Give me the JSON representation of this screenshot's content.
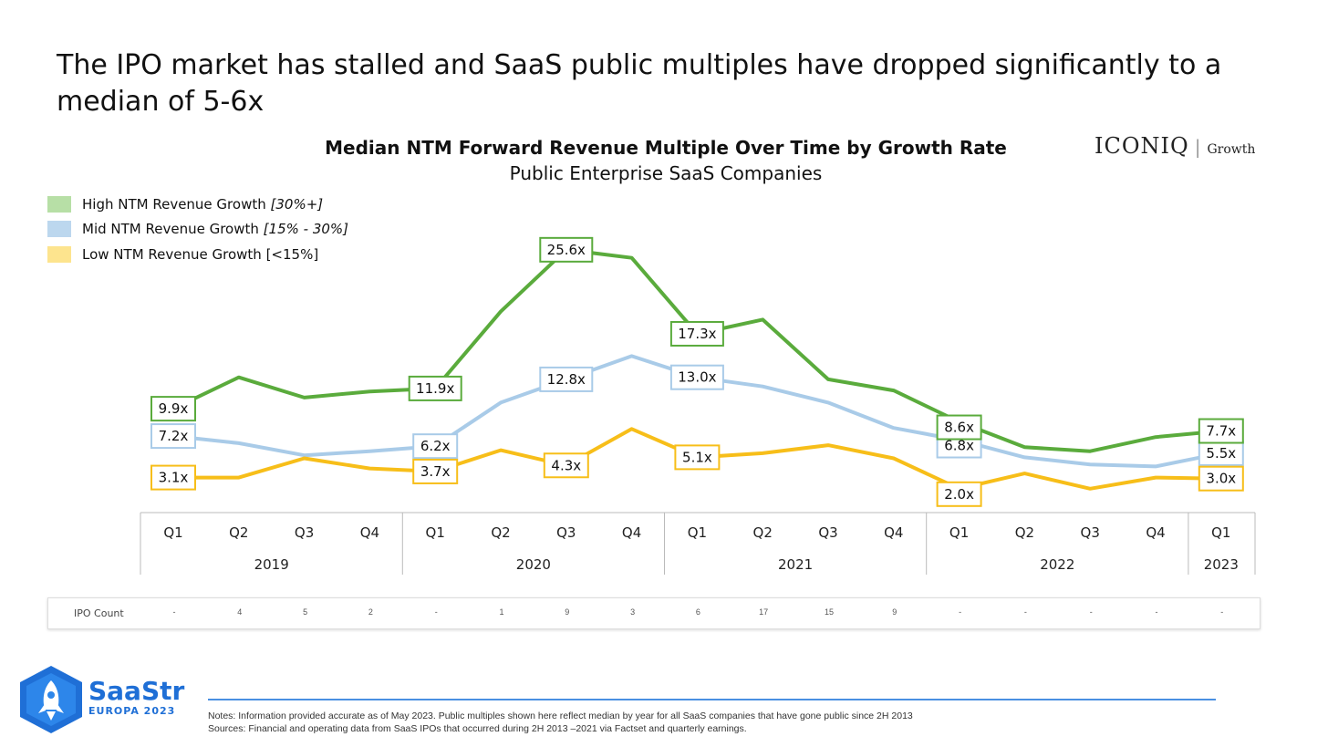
{
  "headline": "The IPO market has stalled and SaaS public multiples have dropped significantly to a median of 5-6x",
  "brand": {
    "name": "ICONIQ",
    "sub": "Growth"
  },
  "chart_data": {
    "type": "line",
    "title": "Median NTM Forward Revenue Multiple Over Time by Growth Rate",
    "subtitle": "Public Enterprise SaaS Companies",
    "categories": [
      "Q1",
      "Q2",
      "Q3",
      "Q4",
      "Q1",
      "Q2",
      "Q3",
      "Q4",
      "Q1",
      "Q2",
      "Q3",
      "Q4",
      "Q1",
      "Q2",
      "Q3",
      "Q4",
      "Q1"
    ],
    "years": [
      {
        "label": "2019",
        "quarters": 4
      },
      {
        "label": "2020",
        "quarters": 4
      },
      {
        "label": "2021",
        "quarters": 4
      },
      {
        "label": "2022",
        "quarters": 4
      },
      {
        "label": "2023",
        "quarters": 1
      }
    ],
    "ylim": [
      0,
      28
    ],
    "series": [
      {
        "name": "High NTM Revenue Growth",
        "qualifier": "[30%+]",
        "color": "#5aab3c",
        "swatch": "#b7dfa6",
        "values": [
          9.9,
          13.0,
          11.0,
          11.6,
          11.9,
          19.5,
          25.6,
          24.8,
          17.3,
          18.7,
          12.8,
          11.7,
          8.6,
          6.1,
          5.7,
          7.1,
          7.7
        ],
        "labels": [
          {
            "index": 0,
            "text": "9.9x"
          },
          {
            "index": 4,
            "text": "11.9x"
          },
          {
            "index": 6,
            "text": "25.6x"
          },
          {
            "index": 8,
            "text": "17.3x"
          },
          {
            "index": 12,
            "text": "8.6x"
          },
          {
            "index": 16,
            "text": "7.7x"
          }
        ]
      },
      {
        "name": "Mid NTM Revenue Growth",
        "qualifier": "[15% - 30%]",
        "color": "#a9cbe8",
        "swatch": "#bcd7ee",
        "values": [
          7.2,
          6.5,
          5.3,
          5.7,
          6.2,
          10.5,
          12.8,
          15.1,
          13.0,
          12.1,
          10.5,
          8.0,
          6.8,
          5.1,
          4.4,
          4.2,
          5.5
        ],
        "labels": [
          {
            "index": 0,
            "text": "7.2x"
          },
          {
            "index": 4,
            "text": "6.2x"
          },
          {
            "index": 6,
            "text": "12.8x"
          },
          {
            "index": 8,
            "text": "13.0x"
          },
          {
            "index": 12,
            "text": "6.8x"
          },
          {
            "index": 16,
            "text": "5.5x"
          }
        ]
      },
      {
        "name": "Low NTM Revenue Growth",
        "qualifier": "[<15%]",
        "color": "#f7be19",
        "swatch": "#fde48e",
        "values": [
          3.1,
          3.1,
          5.0,
          4.0,
          3.7,
          5.8,
          4.3,
          7.9,
          5.1,
          5.5,
          6.3,
          5.0,
          2.0,
          3.5,
          2.0,
          3.1,
          3.0
        ],
        "labels": [
          {
            "index": 0,
            "text": "3.1x"
          },
          {
            "index": 4,
            "text": "3.7x"
          },
          {
            "index": 6,
            "text": "4.3x"
          },
          {
            "index": 8,
            "text": "5.1x"
          },
          {
            "index": 12,
            "text": "2.0x"
          },
          {
            "index": 16,
            "text": "3.0x"
          }
        ]
      }
    ],
    "legend_position": "top-left",
    "grid": false
  },
  "ipo": {
    "label": "IPO Count",
    "values": [
      "-",
      "4",
      "5",
      "2",
      "-",
      "1",
      "9",
      "3",
      "6",
      "17",
      "15",
      "9",
      "-",
      "-",
      "-",
      "-",
      "-"
    ]
  },
  "logo": {
    "name": "SaaStr",
    "event": "EUROPA 2023"
  },
  "notes": [
    "Notes: Information provided accurate as of May 2023. Public multiples shown here reflect median by year for all SaaS companies that have gone public since 2H 2013",
    "Sources: Financial and operating data from SaaS IPOs that occurred during 2H 2013 –2021 via Factset and quarterly earnings."
  ]
}
